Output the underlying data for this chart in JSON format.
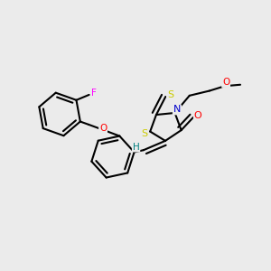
{
  "background_color": "#ebebeb",
  "colors": {
    "O": "#ff0000",
    "N": "#0000cc",
    "S": "#cccc00",
    "F": "#ff00ff",
    "H": "#008080",
    "C": "#000000"
  },
  "lw": 1.5
}
